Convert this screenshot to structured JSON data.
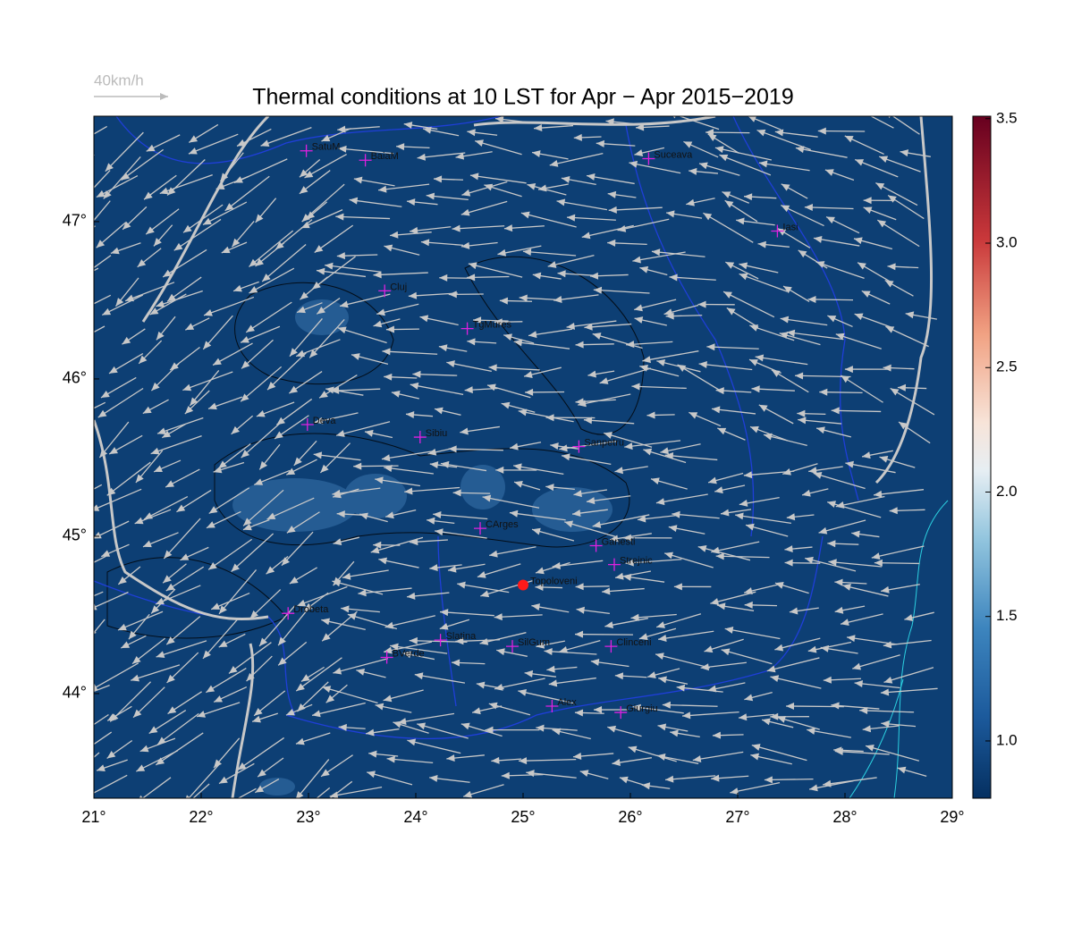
{
  "map": {
    "title": "Thermal conditions at 10 LST for Apr − Apr  2015−2019",
    "wind_reference": "40km/h",
    "xlim": [
      21,
      29
    ],
    "ylim": [
      43.335,
      47.67
    ],
    "xticks": [
      {
        "value": 21,
        "label": "21°"
      },
      {
        "value": 22,
        "label": "22°"
      },
      {
        "value": 23,
        "label": "23°"
      },
      {
        "value": 24,
        "label": "24°"
      },
      {
        "value": 25,
        "label": "25°"
      },
      {
        "value": 26,
        "label": "26°"
      },
      {
        "value": 27,
        "label": "27°"
      },
      {
        "value": 28,
        "label": "28°"
      },
      {
        "value": 29,
        "label": "29°"
      }
    ],
    "yticks": [
      {
        "value": 44,
        "label": "44°"
      },
      {
        "value": 45,
        "label": "45°"
      },
      {
        "value": 46,
        "label": "46°"
      },
      {
        "value": 47,
        "label": "47°"
      }
    ],
    "colorbar": {
      "lim": [
        0.77,
        3.51
      ],
      "ticks": [
        {
          "value": 1,
          "label": "1.0"
        },
        1.5,
        {
          "value": 2,
          "label": "2.0"
        },
        2.5,
        {
          "value": 3,
          "label": "3.0"
        },
        3.5
      ]
    },
    "cities": [
      {
        "name": "SatuM",
        "lon": 22.98,
        "lat": 47.45
      },
      {
        "name": "BaiaM",
        "lon": 23.53,
        "lat": 47.39
      },
      {
        "name": "Suceava",
        "lon": 26.17,
        "lat": 47.4
      },
      {
        "name": "Iasi",
        "lon": 27.37,
        "lat": 46.94
      },
      {
        "name": "Cluj",
        "lon": 23.71,
        "lat": 46.56
      },
      {
        "name": "TgMures",
        "lon": 24.48,
        "lat": 46.32
      },
      {
        "name": "Deva",
        "lon": 22.99,
        "lat": 45.71
      },
      {
        "name": "Sibiu",
        "lon": 24.04,
        "lat": 45.63
      },
      {
        "name": "Sanpetru",
        "lon": 25.52,
        "lat": 45.57
      },
      {
        "name": "CArges",
        "lon": 24.6,
        "lat": 45.05
      },
      {
        "name": "Ganesti",
        "lon": 25.68,
        "lat": 44.94
      },
      {
        "name": "Strejnic",
        "lon": 25.85,
        "lat": 44.82
      },
      {
        "name": "Drobeta",
        "lon": 22.81,
        "lat": 44.51
      },
      {
        "name": "Slatina",
        "lon": 24.23,
        "lat": 44.34
      },
      {
        "name": "SilGum",
        "lon": 24.9,
        "lat": 44.3
      },
      {
        "name": "BVerde",
        "lon": 23.73,
        "lat": 44.23
      },
      {
        "name": "Clinceni",
        "lon": 25.82,
        "lat": 44.3
      },
      {
        "name": "Alex",
        "lon": 25.27,
        "lat": 43.92
      },
      {
        "name": "Giurgiu",
        "lon": 25.91,
        "lat": 43.88
      }
    ],
    "site": {
      "name": "Topoloveni",
      "lon": 25.0,
      "lat": 44.69
    }
  }
}
